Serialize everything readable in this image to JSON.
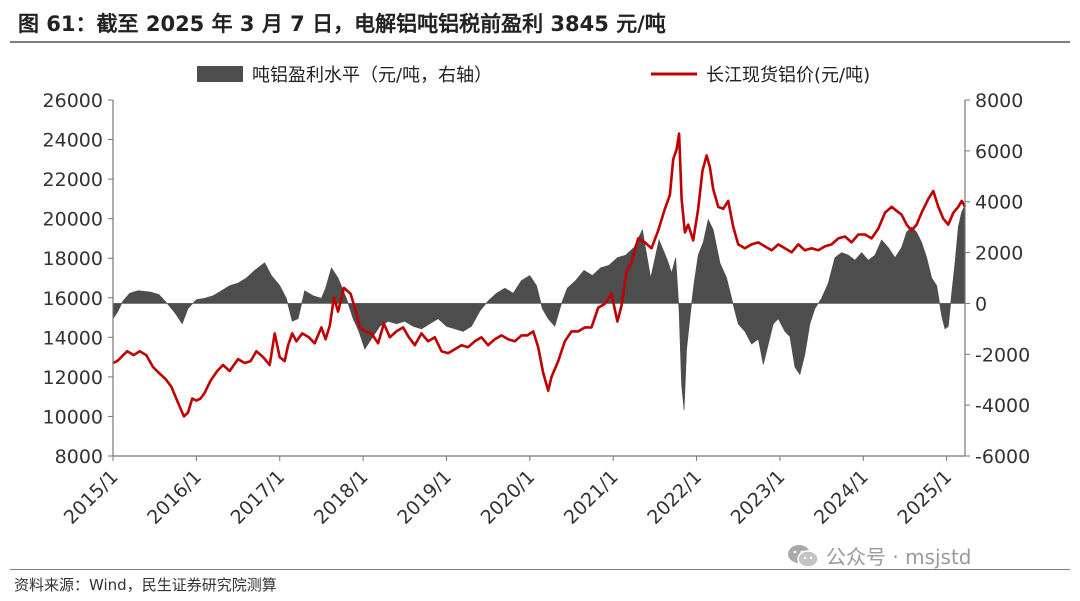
{
  "title": "图 61：截至 2025 年 3 月 7 日，电解铝吨铝税前盈利 3845 元/吨",
  "source": "资料来源：Wind，民生证券研究院测算",
  "watermark": "公众号 · msjstd",
  "chart_data": {
    "type": "line+area",
    "xlabel": "",
    "ylabel_left": "",
    "ylabel_right": "",
    "x_tick_labels": [
      "2015/1",
      "2016/1",
      "2017/1",
      "2018/1",
      "2019/1",
      "2020/1",
      "2021/1",
      "2022/1",
      "2023/1",
      "2024/1",
      "2025/1"
    ],
    "x_range": [
      2015.0,
      2025.22
    ],
    "left_axis": {
      "range": [
        8000,
        26000
      ],
      "ticks": [
        8000,
        10000,
        12000,
        14000,
        16000,
        18000,
        20000,
        22000,
        24000,
        26000
      ]
    },
    "right_axis": {
      "range": [
        -6000,
        8000
      ],
      "ticks": [
        -6000,
        -4000,
        -2000,
        0,
        2000,
        4000,
        6000,
        8000
      ]
    },
    "legend_position": "top",
    "series": [
      {
        "name": "吨铝盈利水平（元/吨，右轴）",
        "type": "area",
        "axis": "right",
        "color": "#4d4d4d",
        "points": [
          [
            2015.0,
            -600
          ],
          [
            2015.06,
            -300
          ],
          [
            2015.12,
            100
          ],
          [
            2015.2,
            400
          ],
          [
            2015.3,
            500
          ],
          [
            2015.45,
            450
          ],
          [
            2015.55,
            350
          ],
          [
            2015.65,
            0
          ],
          [
            2015.75,
            -400
          ],
          [
            2015.83,
            -800
          ],
          [
            2015.9,
            -200
          ],
          [
            2016.0,
            150
          ],
          [
            2016.1,
            200
          ],
          [
            2016.2,
            300
          ],
          [
            2016.3,
            500
          ],
          [
            2016.4,
            700
          ],
          [
            2016.5,
            800
          ],
          [
            2016.6,
            1000
          ],
          [
            2016.7,
            1300
          ],
          [
            2016.82,
            1600
          ],
          [
            2016.9,
            1100
          ],
          [
            2017.0,
            700
          ],
          [
            2017.08,
            200
          ],
          [
            2017.15,
            -700
          ],
          [
            2017.22,
            -600
          ],
          [
            2017.3,
            500
          ],
          [
            2017.4,
            300
          ],
          [
            2017.5,
            200
          ],
          [
            2017.55,
            600
          ],
          [
            2017.62,
            1400
          ],
          [
            2017.7,
            1000
          ],
          [
            2017.8,
            200
          ],
          [
            2017.88,
            -600
          ],
          [
            2017.95,
            -1100
          ],
          [
            2018.02,
            -1800
          ],
          [
            2018.1,
            -1400
          ],
          [
            2018.2,
            -900
          ],
          [
            2018.3,
            -700
          ],
          [
            2018.4,
            -800
          ],
          [
            2018.5,
            -700
          ],
          [
            2018.6,
            -900
          ],
          [
            2018.7,
            -1000
          ],
          [
            2018.8,
            -800
          ],
          [
            2018.9,
            -600
          ],
          [
            2019.0,
            -900
          ],
          [
            2019.1,
            -1000
          ],
          [
            2019.2,
            -1100
          ],
          [
            2019.3,
            -900
          ],
          [
            2019.4,
            -300
          ],
          [
            2019.5,
            100
          ],
          [
            2019.6,
            400
          ],
          [
            2019.7,
            600
          ],
          [
            2019.8,
            400
          ],
          [
            2019.9,
            900
          ],
          [
            2020.0,
            1100
          ],
          [
            2020.08,
            700
          ],
          [
            2020.15,
            -200
          ],
          [
            2020.22,
            -600
          ],
          [
            2020.3,
            -900
          ],
          [
            2020.38,
            0
          ],
          [
            2020.45,
            600
          ],
          [
            2020.55,
            900
          ],
          [
            2020.65,
            1300
          ],
          [
            2020.75,
            1100
          ],
          [
            2020.85,
            1400
          ],
          [
            2020.95,
            1500
          ],
          [
            2021.05,
            1800
          ],
          [
            2021.15,
            1900
          ],
          [
            2021.25,
            2200
          ],
          [
            2021.35,
            2900
          ],
          [
            2021.45,
            1000
          ],
          [
            2021.55,
            2500
          ],
          [
            2021.65,
            1700
          ],
          [
            2021.7,
            1200
          ],
          [
            2021.75,
            1800
          ],
          [
            2021.79,
            -300
          ],
          [
            2021.82,
            -3200
          ],
          [
            2021.85,
            -4200
          ],
          [
            2021.88,
            -1800
          ],
          [
            2021.93,
            -300
          ],
          [
            2021.97,
            800
          ],
          [
            2022.02,
            1900
          ],
          [
            2022.08,
            2400
          ],
          [
            2022.14,
            3300
          ],
          [
            2022.2,
            2900
          ],
          [
            2022.28,
            1600
          ],
          [
            2022.36,
            1000
          ],
          [
            2022.42,
            200
          ],
          [
            2022.5,
            -800
          ],
          [
            2022.58,
            -1100
          ],
          [
            2022.66,
            -1600
          ],
          [
            2022.74,
            -1400
          ],
          [
            2022.8,
            -2400
          ],
          [
            2022.86,
            -1600
          ],
          [
            2022.92,
            -800
          ],
          [
            2022.98,
            -600
          ],
          [
            2023.06,
            -1100
          ],
          [
            2023.12,
            -1300
          ],
          [
            2023.18,
            -2500
          ],
          [
            2023.24,
            -2800
          ],
          [
            2023.3,
            -2000
          ],
          [
            2023.36,
            -800
          ],
          [
            2023.42,
            -200
          ],
          [
            2023.5,
            200
          ],
          [
            2023.58,
            800
          ],
          [
            2023.66,
            1800
          ],
          [
            2023.74,
            2000
          ],
          [
            2023.82,
            1900
          ],
          [
            2023.9,
            1700
          ],
          [
            2023.98,
            2000
          ],
          [
            2024.06,
            1700
          ],
          [
            2024.14,
            1900
          ],
          [
            2024.22,
            2500
          ],
          [
            2024.3,
            2200
          ],
          [
            2024.38,
            1800
          ],
          [
            2024.46,
            2200
          ],
          [
            2024.52,
            2800
          ],
          [
            2024.58,
            3000
          ],
          [
            2024.64,
            2800
          ],
          [
            2024.7,
            2400
          ],
          [
            2024.76,
            1800
          ],
          [
            2024.82,
            1000
          ],
          [
            2024.88,
            700
          ],
          [
            2024.94,
            -500
          ],
          [
            2024.98,
            -1000
          ],
          [
            2025.02,
            -900
          ],
          [
            2025.06,
            400
          ],
          [
            2025.1,
            1600
          ],
          [
            2025.14,
            3000
          ],
          [
            2025.18,
            3600
          ],
          [
            2025.22,
            3845
          ]
        ]
      },
      {
        "name": "长江现货铝价(元/吨)",
        "type": "line",
        "axis": "left",
        "color": "#c00000",
        "points": [
          [
            2015.0,
            12700
          ],
          [
            2015.05,
            12800
          ],
          [
            2015.1,
            13000
          ],
          [
            2015.17,
            13300
          ],
          [
            2015.25,
            13100
          ],
          [
            2015.32,
            13300
          ],
          [
            2015.4,
            13100
          ],
          [
            2015.48,
            12500
          ],
          [
            2015.55,
            12200
          ],
          [
            2015.63,
            11900
          ],
          [
            2015.7,
            11500
          ],
          [
            2015.75,
            11000
          ],
          [
            2015.8,
            10500
          ],
          [
            2015.85,
            10000
          ],
          [
            2015.9,
            10200
          ],
          [
            2015.95,
            10900
          ],
          [
            2016.0,
            10800
          ],
          [
            2016.05,
            10900
          ],
          [
            2016.1,
            11200
          ],
          [
            2016.17,
            11800
          ],
          [
            2016.25,
            12300
          ],
          [
            2016.32,
            12600
          ],
          [
            2016.4,
            12300
          ],
          [
            2016.5,
            12900
          ],
          [
            2016.58,
            12700
          ],
          [
            2016.65,
            12800
          ],
          [
            2016.72,
            13300
          ],
          [
            2016.8,
            13000
          ],
          [
            2016.88,
            12600
          ],
          [
            2016.94,
            14200
          ],
          [
            2017.0,
            13000
          ],
          [
            2017.06,
            12800
          ],
          [
            2017.1,
            13600
          ],
          [
            2017.15,
            14200
          ],
          [
            2017.2,
            13800
          ],
          [
            2017.27,
            14200
          ],
          [
            2017.35,
            14000
          ],
          [
            2017.42,
            13700
          ],
          [
            2017.5,
            14500
          ],
          [
            2017.55,
            13900
          ],
          [
            2017.6,
            14600
          ],
          [
            2017.65,
            16000
          ],
          [
            2017.7,
            15300
          ],
          [
            2017.77,
            16500
          ],
          [
            2017.85,
            16200
          ],
          [
            2017.9,
            15500
          ],
          [
            2017.96,
            14500
          ],
          [
            2018.02,
            14300
          ],
          [
            2018.1,
            14200
          ],
          [
            2018.18,
            13700
          ],
          [
            2018.25,
            14700
          ],
          [
            2018.32,
            14000
          ],
          [
            2018.4,
            14300
          ],
          [
            2018.48,
            14500
          ],
          [
            2018.55,
            14000
          ],
          [
            2018.62,
            13600
          ],
          [
            2018.7,
            14200
          ],
          [
            2018.78,
            13800
          ],
          [
            2018.86,
            14000
          ],
          [
            2018.94,
            13300
          ],
          [
            2019.02,
            13200
          ],
          [
            2019.1,
            13400
          ],
          [
            2019.18,
            13600
          ],
          [
            2019.26,
            13500
          ],
          [
            2019.34,
            13800
          ],
          [
            2019.42,
            14000
          ],
          [
            2019.5,
            13600
          ],
          [
            2019.58,
            13900
          ],
          [
            2019.66,
            14100
          ],
          [
            2019.74,
            13900
          ],
          [
            2019.82,
            13800
          ],
          [
            2019.9,
            14100
          ],
          [
            2019.97,
            14100
          ],
          [
            2020.04,
            14300
          ],
          [
            2020.1,
            13500
          ],
          [
            2020.16,
            12200
          ],
          [
            2020.22,
            11300
          ],
          [
            2020.26,
            12000
          ],
          [
            2020.34,
            12800
          ],
          [
            2020.42,
            13800
          ],
          [
            2020.5,
            14300
          ],
          [
            2020.58,
            14300
          ],
          [
            2020.66,
            14500
          ],
          [
            2020.74,
            14500
          ],
          [
            2020.82,
            15500
          ],
          [
            2020.9,
            15700
          ],
          [
            2020.98,
            16200
          ],
          [
            2021.05,
            14800
          ],
          [
            2021.1,
            15600
          ],
          [
            2021.16,
            17300
          ],
          [
            2021.22,
            17800
          ],
          [
            2021.3,
            19000
          ],
          [
            2021.38,
            18800
          ],
          [
            2021.46,
            18500
          ],
          [
            2021.54,
            19400
          ],
          [
            2021.62,
            20500
          ],
          [
            2021.68,
            21200
          ],
          [
            2021.72,
            23000
          ],
          [
            2021.76,
            23500
          ],
          [
            2021.79,
            24300
          ],
          [
            2021.82,
            21000
          ],
          [
            2021.86,
            19300
          ],
          [
            2021.9,
            19700
          ],
          [
            2021.96,
            18900
          ],
          [
            2022.02,
            20500
          ],
          [
            2022.07,
            22400
          ],
          [
            2022.12,
            23200
          ],
          [
            2022.16,
            22600
          ],
          [
            2022.2,
            21500
          ],
          [
            2022.26,
            20600
          ],
          [
            2022.32,
            20500
          ],
          [
            2022.38,
            20900
          ],
          [
            2022.44,
            19600
          ],
          [
            2022.5,
            18700
          ],
          [
            2022.58,
            18500
          ],
          [
            2022.66,
            18700
          ],
          [
            2022.74,
            18800
          ],
          [
            2022.82,
            18600
          ],
          [
            2022.9,
            18400
          ],
          [
            2022.98,
            18700
          ],
          [
            2023.06,
            18500
          ],
          [
            2023.14,
            18300
          ],
          [
            2023.22,
            18700
          ],
          [
            2023.3,
            18400
          ],
          [
            2023.38,
            18500
          ],
          [
            2023.46,
            18400
          ],
          [
            2023.54,
            18600
          ],
          [
            2023.62,
            18700
          ],
          [
            2023.7,
            19000
          ],
          [
            2023.78,
            19100
          ],
          [
            2023.86,
            18800
          ],
          [
            2023.94,
            19200
          ],
          [
            2024.02,
            19200
          ],
          [
            2024.1,
            19000
          ],
          [
            2024.18,
            19500
          ],
          [
            2024.26,
            20300
          ],
          [
            2024.34,
            20600
          ],
          [
            2024.4,
            20400
          ],
          [
            2024.46,
            20200
          ],
          [
            2024.52,
            19700
          ],
          [
            2024.58,
            19400
          ],
          [
            2024.64,
            19700
          ],
          [
            2024.7,
            20300
          ],
          [
            2024.78,
            21000
          ],
          [
            2024.84,
            21400
          ],
          [
            2024.9,
            20600
          ],
          [
            2024.96,
            20000
          ],
          [
            2025.02,
            19700
          ],
          [
            2025.08,
            20300
          ],
          [
            2025.14,
            20600
          ],
          [
            2025.18,
            20900
          ],
          [
            2025.22,
            20600
          ]
        ]
      }
    ]
  }
}
